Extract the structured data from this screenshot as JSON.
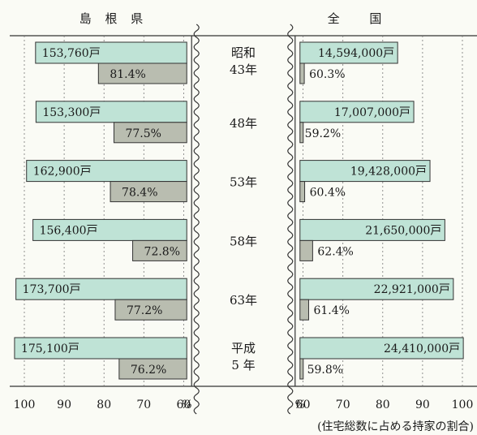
{
  "chart_data": {
    "type": "bar",
    "left_header": "島 根 県",
    "right_header": "全 国",
    "caption": "(住宅総数に占める持家の割合)",
    "axis_ticks_left": [
      "100",
      "90",
      "80",
      "70",
      "60"
    ],
    "axis_ticks_right": [
      "60",
      "70",
      "80",
      "90",
      "100"
    ],
    "axis_unit": "%",
    "xlim": [
      58,
      100
    ],
    "colors": {
      "households": "#bfe3d6",
      "ratio": "#b9bdb0",
      "edge": "#333333"
    },
    "categories": [
      {
        "lines": [
          "昭和",
          "43年"
        ]
      },
      {
        "lines": [
          "48年"
        ]
      },
      {
        "lines": [
          "53年"
        ]
      },
      {
        "lines": [
          "58年"
        ]
      },
      {
        "lines": [
          "63年"
        ]
      },
      {
        "lines": [
          "平成",
          "5 年"
        ]
      }
    ],
    "series": {
      "shimane_households": [
        153760,
        153300,
        162900,
        156400,
        173700,
        175100
      ],
      "shimane_households_labels": [
        "153,760戸",
        "153,300戸",
        "162,900戸",
        "156,400戸",
        "173,700戸",
        "175,100戸"
      ],
      "shimane_ratio": [
        81.4,
        77.5,
        78.4,
        72.8,
        77.2,
        76.2
      ],
      "shimane_ratio_labels": [
        "81.4%",
        "77.5%",
        "78.4%",
        "72.8%",
        "77.2%",
        "76.2%"
      ],
      "national_households": [
        14594000,
        17007000,
        19428000,
        21650000,
        22921000,
        24410000
      ],
      "national_households_labels": [
        "14,594,000戸",
        "17,007,000戸",
        "19,428,000戸",
        "21,650,000戸",
        "22,921,000戸",
        "24,410,000戸"
      ],
      "national_ratio": [
        60.3,
        59.2,
        60.4,
        62.4,
        61.4,
        59.8
      ],
      "national_ratio_labels": [
        "60.3%",
        "59.2%",
        "60.4%",
        "62.4%",
        "61.4%",
        "59.8%"
      ]
    }
  }
}
